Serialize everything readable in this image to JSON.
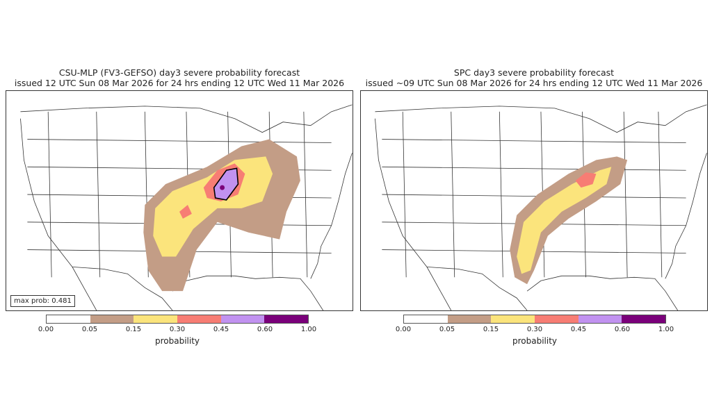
{
  "panels": [
    {
      "title_line1": "CSU-MLP (FV3-GEFSO) day3 severe probability forecast",
      "title_line2": "issued 12 UTC Sun 08 Mar 2026 for 24 hrs ending 12 UTC Wed 11 Mar 2026",
      "max_prob_label": "max prob: 0.481"
    },
    {
      "title_line1": "SPC day3 severe probability forecast",
      "title_line2": "issued ~09 UTC Sun 08 Mar 2026 for 24 hrs ending 12 UTC Wed 11 Mar 2026"
    }
  ],
  "colorbar": {
    "label": "probability",
    "ticks": [
      "0.00",
      "0.05",
      "0.15",
      "0.30",
      "0.45",
      "0.60",
      "1.00"
    ],
    "colors": [
      "#ffffff",
      "#c39d86",
      "#fbe47c",
      "#f77d74",
      "#c192f0",
      "#7a007a"
    ]
  }
}
